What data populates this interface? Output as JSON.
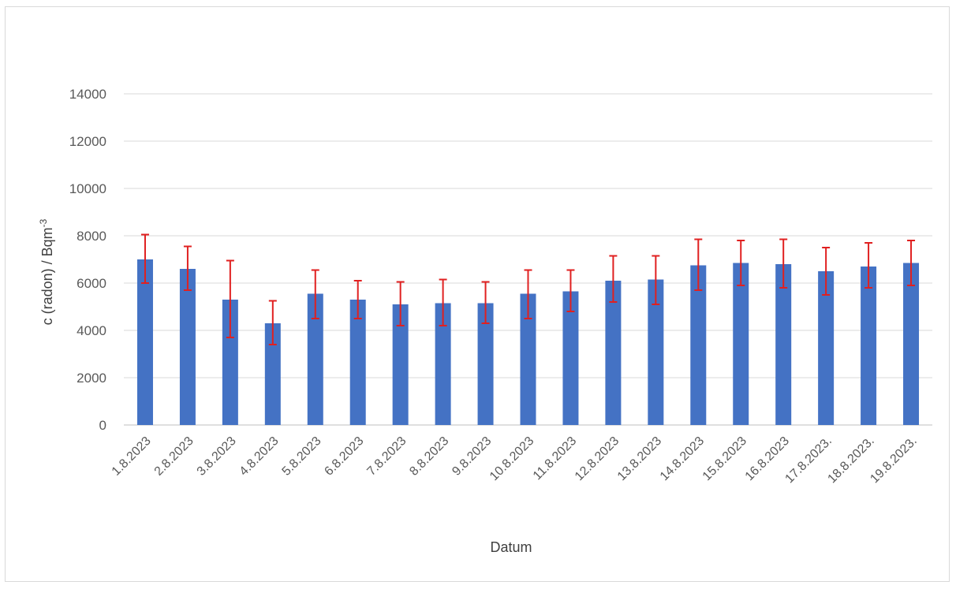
{
  "chart_data": {
    "type": "bar",
    "xlabel": "Datum",
    "ylabel": "c (radon) / Bqm",
    "ylabel_superscript": "-3",
    "ylim": [
      0,
      14000
    ],
    "yticks": [
      0,
      2000,
      4000,
      6000,
      8000,
      10000,
      12000,
      14000
    ],
    "grid": true,
    "legend": "none",
    "bar_color": "#4472c4",
    "error_bar_color": "#e02020",
    "categories": [
      "1.8.2023",
      "2.8.2023",
      "3.8.2023",
      "4.8.2023",
      "5.8.2023",
      "6.8.2023",
      "7.8.2023",
      "8.8.2023",
      "9.8.2023",
      "10.8.2023",
      "11.8.2023",
      "12.8.2023",
      "13.8.2023",
      "14.8.2023",
      "15.8.2023",
      "16.8.2023",
      "17.8.2023.",
      "18.8.2023.",
      "19.8.2023."
    ],
    "values": [
      7000,
      6600,
      5300,
      4300,
      5550,
      5300,
      5100,
      5150,
      5150,
      5550,
      5650,
      6100,
      6150,
      6750,
      6850,
      6800,
      6500,
      6700,
      6850
    ],
    "error_low": [
      6000,
      5700,
      3700,
      3400,
      4500,
      4500,
      4200,
      4200,
      4300,
      4500,
      4800,
      5200,
      5100,
      5700,
      5900,
      5800,
      5500,
      5800,
      5900
    ],
    "error_high": [
      8050,
      7550,
      6950,
      5250,
      6550,
      6100,
      6050,
      6150,
      6050,
      6550,
      6550,
      7150,
      7150,
      7850,
      7800,
      7850,
      7500,
      7700,
      7800
    ]
  }
}
